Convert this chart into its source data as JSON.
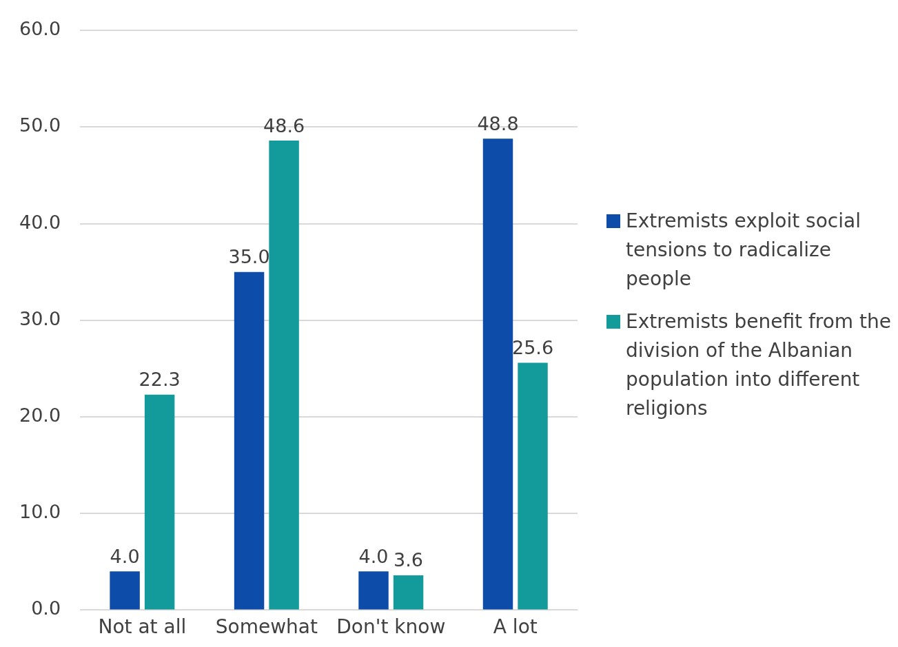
{
  "chart_data": {
    "type": "bar",
    "categories": [
      "Not at all",
      "Somewhat",
      "Don't know",
      "A lot"
    ],
    "series": [
      {
        "name": "Extremists exploit social tensions to radicalize people",
        "color": "#0d4ca8",
        "values": [
          4.0,
          35.0,
          4.0,
          48.8
        ],
        "value_labels": [
          "4.0",
          "35.0",
          "4.0",
          "48.8"
        ]
      },
      {
        "name": "Extremists benefit from the division of the Albanian population into different religions",
        "color": "#139a9a",
        "values": [
          22.3,
          48.6,
          3.6,
          25.6
        ],
        "value_labels": [
          "22.3",
          "48.6",
          "3.6",
          "25.6"
        ]
      }
    ],
    "ylim": [
      0,
      60
    ],
    "yticks": [
      {
        "value": 0,
        "label": "0.0"
      },
      {
        "value": 10,
        "label": "10.0"
      },
      {
        "value": 20,
        "label": "20.0"
      },
      {
        "value": 30,
        "label": "30.0"
      },
      {
        "value": 40,
        "label": "40.0"
      },
      {
        "value": 50,
        "label": "50.0"
      },
      {
        "value": 60,
        "label": "60.0"
      }
    ],
    "grid": "y",
    "legend": "right"
  }
}
